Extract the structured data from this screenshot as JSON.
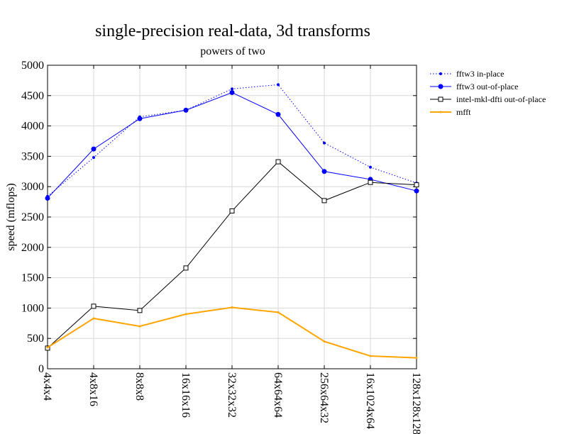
{
  "chart_data": {
    "type": "line",
    "title": "single-precision real-data, 3d transforms",
    "subtitle": "powers of two",
    "xlabel": "",
    "ylabel": "speed (mflops)",
    "ylim": [
      0,
      5000
    ],
    "yticks": [
      0,
      500,
      1000,
      1500,
      2000,
      2500,
      3000,
      3500,
      4000,
      4500,
      5000
    ],
    "grid": true,
    "legend_position": "right",
    "categories": [
      "4x4x4",
      "4x8x16",
      "8x8x8",
      "16x16x16",
      "32x32x32",
      "64x64x64",
      "256x64x32",
      "16x1024x64",
      "128x128x128"
    ],
    "series": [
      {
        "name": "fftw3 in-place",
        "color": "#0000ff",
        "style": "dotted",
        "marker": "small-dot",
        "values": [
          2840,
          3480,
          4150,
          4260,
          4610,
          4680,
          3720,
          3320,
          3060
        ]
      },
      {
        "name": "fftw3 out-of-place",
        "color": "#0000ff",
        "style": "solid",
        "marker": "dot",
        "values": [
          2810,
          3620,
          4120,
          4260,
          4550,
          4190,
          3250,
          3120,
          2930
        ]
      },
      {
        "name": "intel-mkl-dfti out-of-place",
        "color": "#000000",
        "style": "solid",
        "marker": "square",
        "values": [
          340,
          1030,
          960,
          1660,
          2600,
          3410,
          2770,
          3070,
          3030
        ]
      },
      {
        "name": "mfft",
        "color": "#ffa500",
        "style": "solid",
        "marker": "tiny-dot",
        "values": [
          350,
          830,
          700,
          900,
          1010,
          930,
          450,
          210,
          180
        ]
      }
    ]
  }
}
